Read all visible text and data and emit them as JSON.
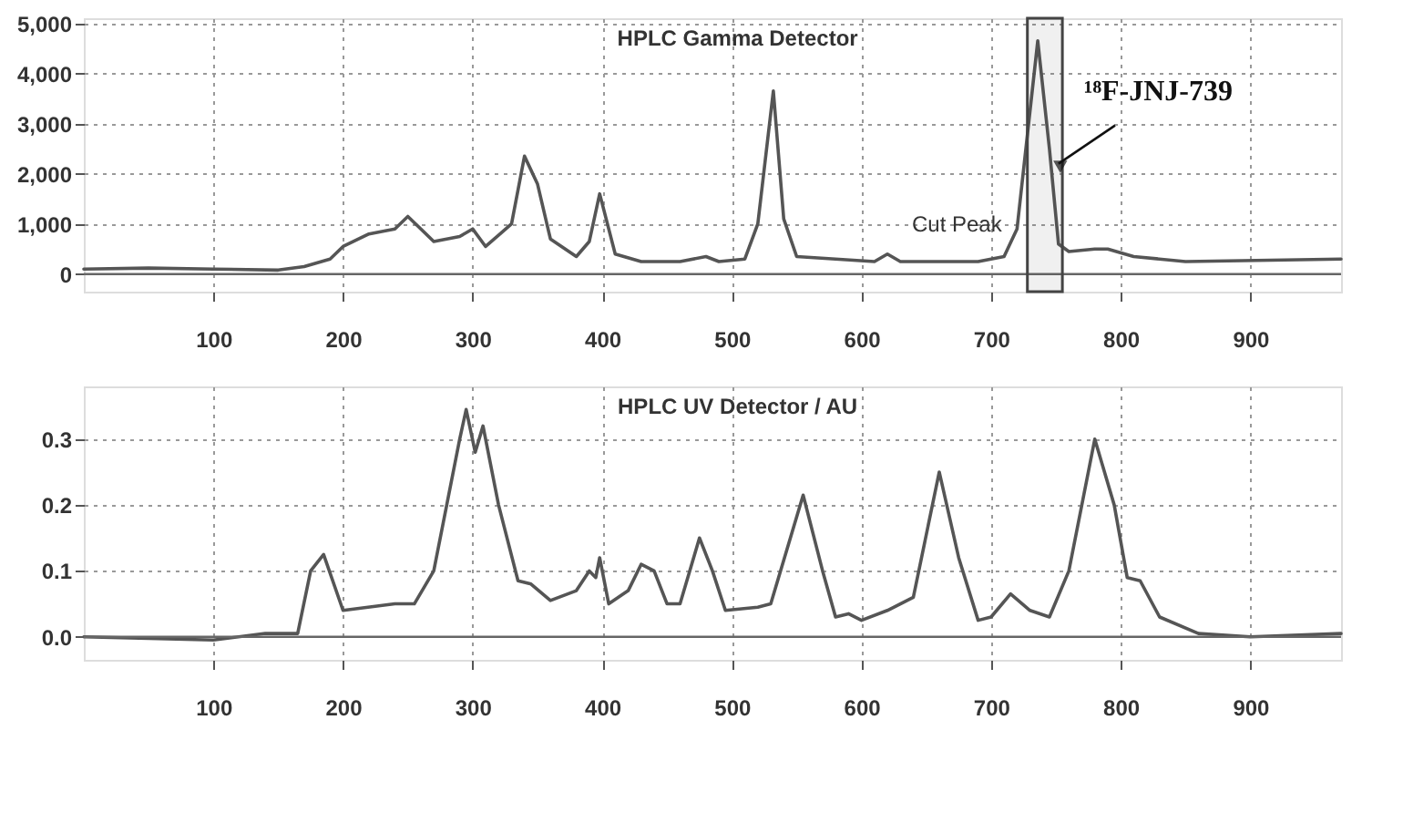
{
  "chart_data": [
    {
      "type": "line",
      "title": "HPLC Gamma Detector",
      "x": [
        0,
        50,
        100,
        150,
        170,
        190,
        200,
        220,
        240,
        250,
        270,
        290,
        300,
        310,
        330,
        340,
        350,
        360,
        380,
        390,
        398,
        410,
        430,
        460,
        480,
        490,
        510,
        520,
        532,
        540,
        550,
        580,
        610,
        620,
        630,
        690,
        710,
        720,
        736,
        745,
        752,
        760,
        780,
        790,
        810,
        850,
        970
      ],
      "series": [
        {
          "color": "#555555",
          "values": [
            100,
            120,
            100,
            80,
            150,
            300,
            550,
            800,
            900,
            1150,
            650,
            750,
            900,
            550,
            1000,
            2350,
            1800,
            700,
            350,
            650,
            1600,
            400,
            250,
            250,
            350,
            250,
            300,
            1000,
            3650,
            1100,
            350,
            300,
            250,
            400,
            250,
            250,
            350,
            900,
            4650,
            2500,
            600,
            450,
            500,
            500,
            350,
            250,
            300
          ]
        }
      ],
      "xlim": [
        0,
        970
      ],
      "ylim": [
        -350,
        5100
      ],
      "xticks": [
        100,
        200,
        300,
        400,
        500,
        600,
        700,
        800,
        900
      ],
      "yticks": [
        {
          "value": 0,
          "label": "0"
        },
        {
          "value": 1000,
          "label": "1,000"
        },
        {
          "value": 2000,
          "label": "2,000"
        },
        {
          "value": 3000,
          "label": "3,000"
        },
        {
          "value": 4000,
          "label": "4,000"
        },
        {
          "value": 5000,
          "label": "5,000"
        }
      ],
      "grid": true,
      "line_style": "solid",
      "marker": "none",
      "bands": [
        {
          "axis": "x",
          "from": 728,
          "to": 755,
          "label": "Cut Peak"
        }
      ],
      "annotations": [
        {
          "text": "¹⁸F-JNJ-739",
          "x": 752,
          "y": 2200
        }
      ]
    },
    {
      "type": "line",
      "title": "HPLC UV Detector / AU",
      "x": [
        0,
        100,
        140,
        165,
        175,
        185,
        200,
        240,
        255,
        270,
        280,
        290,
        295,
        302,
        308,
        320,
        335,
        345,
        360,
        380,
        390,
        395,
        398,
        405,
        420,
        430,
        440,
        450,
        460,
        475,
        485,
        495,
        520,
        530,
        555,
        570,
        580,
        590,
        600,
        620,
        640,
        660,
        675,
        690,
        700,
        715,
        730,
        745,
        760,
        780,
        795,
        805,
        815,
        830,
        860,
        900,
        970
      ],
      "series": [
        {
          "color": "#555555",
          "values": [
            0.0,
            -0.005,
            0.005,
            0.005,
            0.1,
            0.125,
            0.04,
            0.05,
            0.05,
            0.1,
            0.2,
            0.3,
            0.345,
            0.28,
            0.32,
            0.2,
            0.085,
            0.08,
            0.055,
            0.07,
            0.1,
            0.09,
            0.12,
            0.05,
            0.07,
            0.11,
            0.1,
            0.05,
            0.05,
            0.15,
            0.1,
            0.04,
            0.045,
            0.05,
            0.215,
            0.1,
            0.03,
            0.035,
            0.025,
            0.04,
            0.06,
            0.25,
            0.12,
            0.025,
            0.03,
            0.065,
            0.04,
            0.03,
            0.1,
            0.3,
            0.2,
            0.09,
            0.085,
            0.03,
            0.005,
            0.0,
            0.005
          ]
        }
      ],
      "xlim": [
        0,
        970
      ],
      "ylim": [
        -0.035,
        0.38
      ],
      "xticks": [
        100,
        200,
        300,
        400,
        500,
        600,
        700,
        800,
        900
      ],
      "yticks": [
        {
          "value": 0,
          "label": "0.0"
        },
        {
          "value": 0.1,
          "label": "0.1"
        },
        {
          "value": 0.2,
          "label": "0.2"
        },
        {
          "value": 0.3,
          "label": "0.3"
        }
      ],
      "grid": true,
      "line_style": "solid",
      "marker": "none"
    }
  ]
}
